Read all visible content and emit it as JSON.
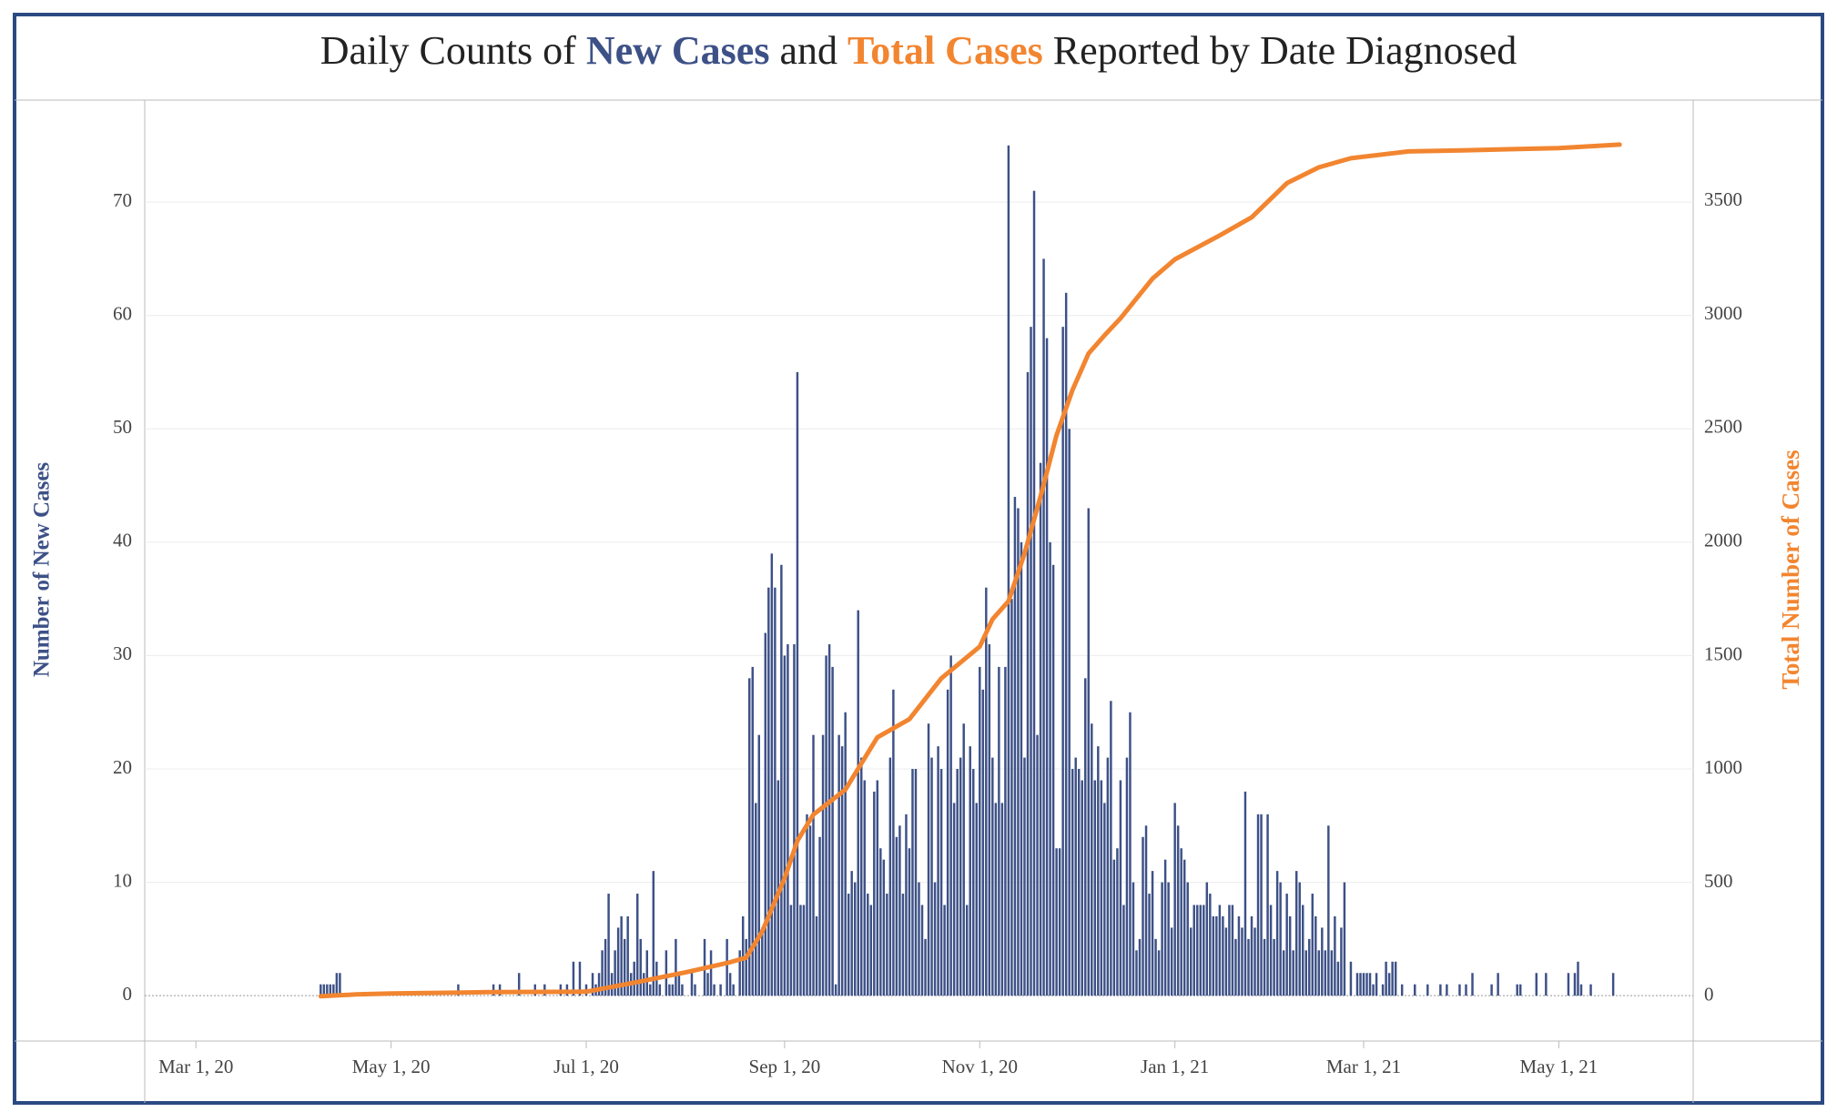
{
  "chart_data": {
    "type": "bar",
    "title_prefix": "Daily Counts of",
    "title_joiner": "and",
    "title_suffix": "Reported by Date Diagnosed",
    "y_label": "Number of New Cases",
    "y2_label": "Total Number of Cases",
    "xlim": [
      "2020-02-14",
      "2021-06-12"
    ],
    "xticks": [
      {
        "value": "2020-03-01",
        "label": "Mar 1, 20"
      },
      {
        "value": "2020-05-01",
        "label": "May 1, 20"
      },
      {
        "value": "2020-07-01",
        "label": "Jul 1, 20"
      },
      {
        "value": "2020-09-01",
        "label": "Sep 1, 20"
      },
      {
        "value": "2020-11-01",
        "label": "Nov 1, 20"
      },
      {
        "value": "2021-01-01",
        "label": "Jan 1, 21"
      },
      {
        "value": "2021-03-01",
        "label": "Mar 1, 21"
      },
      {
        "value": "2021-05-01",
        "label": "May 1, 21"
      }
    ],
    "ylim": [
      -4,
      79
    ],
    "yticks": [
      0,
      10,
      20,
      30,
      40,
      50,
      60,
      70
    ],
    "y2lim": [
      -197,
      3946
    ],
    "y2ticks": [
      0,
      500,
      1000,
      1500,
      2000,
      2500,
      3000,
      3500
    ],
    "grid": true,
    "series": [
      {
        "name": "New Cases",
        "color": "#3d5187",
        "x": [
          "2020-04-09",
          "2020-04-10",
          "2020-04-11",
          "2020-04-12",
          "2020-04-13",
          "2020-04-14",
          "2020-04-15",
          "2020-05-22",
          "2020-06-02",
          "2020-06-04",
          "2020-06-10",
          "2020-06-15",
          "2020-06-18",
          "2020-06-23",
          "2020-06-25",
          "2020-06-27",
          "2020-06-29",
          "2020-07-01",
          "2020-07-03",
          "2020-07-04",
          "2020-07-05",
          "2020-07-06",
          "2020-07-07",
          "2020-07-08",
          "2020-07-09",
          "2020-07-10",
          "2020-07-11",
          "2020-07-12",
          "2020-07-13",
          "2020-07-14",
          "2020-07-15",
          "2020-07-16",
          "2020-07-17",
          "2020-07-18",
          "2020-07-19",
          "2020-07-20",
          "2020-07-21",
          "2020-07-22",
          "2020-07-23",
          "2020-07-24",
          "2020-07-25",
          "2020-07-26",
          "2020-07-27",
          "2020-07-28",
          "2020-07-29",
          "2020-07-30",
          "2020-07-31",
          "2020-08-01",
          "2020-08-02",
          "2020-08-03",
          "2020-08-04",
          "2020-08-05",
          "2020-08-06",
          "2020-08-07",
          "2020-08-08",
          "2020-08-09",
          "2020-08-10",
          "2020-08-11",
          "2020-08-12",
          "2020-08-13",
          "2020-08-14",
          "2020-08-15",
          "2020-08-16",
          "2020-08-17",
          "2020-08-18",
          "2020-08-19",
          "2020-08-20",
          "2020-08-21",
          "2020-08-22",
          "2020-08-23",
          "2020-08-24",
          "2020-08-25",
          "2020-08-26",
          "2020-08-27",
          "2020-08-28",
          "2020-08-29",
          "2020-08-30",
          "2020-08-31",
          "2020-09-01",
          "2020-09-02",
          "2020-09-03",
          "2020-09-04",
          "2020-09-05",
          "2020-09-06",
          "2020-09-07",
          "2020-09-08",
          "2020-09-09",
          "2020-09-10",
          "2020-09-11",
          "2020-09-12",
          "2020-09-13",
          "2020-09-14",
          "2020-09-15",
          "2020-09-16",
          "2020-09-17",
          "2020-09-18",
          "2020-09-19",
          "2020-09-20",
          "2020-09-21",
          "2020-09-22",
          "2020-09-23",
          "2020-09-24",
          "2020-09-25",
          "2020-09-26",
          "2020-09-27",
          "2020-09-28",
          "2020-09-29",
          "2020-09-30",
          "2020-10-01",
          "2020-10-02",
          "2020-10-03",
          "2020-10-04",
          "2020-10-05",
          "2020-10-06",
          "2020-10-07",
          "2020-10-08",
          "2020-10-09",
          "2020-10-10",
          "2020-10-11",
          "2020-10-12",
          "2020-10-13",
          "2020-10-14",
          "2020-10-15",
          "2020-10-16",
          "2020-10-17",
          "2020-10-18",
          "2020-10-19",
          "2020-10-20",
          "2020-10-21",
          "2020-10-22",
          "2020-10-23",
          "2020-10-24",
          "2020-10-25",
          "2020-10-26",
          "2020-10-27",
          "2020-10-28",
          "2020-10-29",
          "2020-10-30",
          "2020-10-31",
          "2020-11-01",
          "2020-11-02",
          "2020-11-03",
          "2020-11-04",
          "2020-11-05",
          "2020-11-06",
          "2020-11-07",
          "2020-11-08",
          "2020-11-09",
          "2020-11-10",
          "2020-11-11",
          "2020-11-12",
          "2020-11-13",
          "2020-11-14",
          "2020-11-15",
          "2020-11-16",
          "2020-11-17",
          "2020-11-18",
          "2020-11-19",
          "2020-11-20",
          "2020-11-21",
          "2020-11-22",
          "2020-11-23",
          "2020-11-24",
          "2020-11-25",
          "2020-11-26",
          "2020-11-27",
          "2020-11-28",
          "2020-11-29",
          "2020-11-30",
          "2020-12-01",
          "2020-12-02",
          "2020-12-03",
          "2020-12-04",
          "2020-12-05",
          "2020-12-06",
          "2020-12-07",
          "2020-12-08",
          "2020-12-09",
          "2020-12-10",
          "2020-12-11",
          "2020-12-12",
          "2020-12-13",
          "2020-12-14",
          "2020-12-15",
          "2020-12-16",
          "2020-12-17",
          "2020-12-18",
          "2020-12-19",
          "2020-12-20",
          "2020-12-21",
          "2020-12-22",
          "2020-12-23",
          "2020-12-24",
          "2020-12-25",
          "2020-12-26",
          "2020-12-27",
          "2020-12-28",
          "2020-12-29",
          "2020-12-30",
          "2020-12-31",
          "2021-01-01",
          "2021-01-02",
          "2021-01-03",
          "2021-01-04",
          "2021-01-05",
          "2021-01-06",
          "2021-01-07",
          "2021-01-08",
          "2021-01-09",
          "2021-01-10",
          "2021-01-11",
          "2021-01-12",
          "2021-01-13",
          "2021-01-14",
          "2021-01-15",
          "2021-01-16",
          "2021-01-17",
          "2021-01-18",
          "2021-01-19",
          "2021-01-20",
          "2021-01-21",
          "2021-01-22",
          "2021-01-23",
          "2021-01-24",
          "2021-01-25",
          "2021-01-26",
          "2021-01-27",
          "2021-01-28",
          "2021-01-29",
          "2021-01-30",
          "2021-01-31",
          "2021-02-01",
          "2021-02-02",
          "2021-02-03",
          "2021-02-04",
          "2021-02-05",
          "2021-02-06",
          "2021-02-07",
          "2021-02-08",
          "2021-02-09",
          "2021-02-10",
          "2021-02-11",
          "2021-02-12",
          "2021-02-13",
          "2021-02-14",
          "2021-02-15",
          "2021-02-16",
          "2021-02-17",
          "2021-02-18",
          "2021-02-19",
          "2021-02-20",
          "2021-02-21",
          "2021-02-22",
          "2021-02-23",
          "2021-02-24",
          "2021-02-25",
          "2021-02-27",
          "2021-02-28",
          "2021-03-01",
          "2021-03-02",
          "2021-03-03",
          "2021-03-04",
          "2021-03-05",
          "2021-03-07",
          "2021-03-08",
          "2021-03-09",
          "2021-03-10",
          "2021-03-11",
          "2021-03-13",
          "2021-03-17",
          "2021-03-21",
          "2021-03-25",
          "2021-03-27",
          "2021-03-31",
          "2021-04-02",
          "2021-04-04",
          "2021-04-10",
          "2021-04-12",
          "2021-04-18",
          "2021-04-19",
          "2021-04-24",
          "2021-04-27",
          "2021-05-04",
          "2021-05-06",
          "2021-05-07",
          "2021-05-08",
          "2021-05-11",
          "2021-05-18"
        ],
        "values": [
          1,
          1,
          1,
          1,
          1,
          2,
          2,
          1,
          1,
          1,
          2,
          1,
          1,
          1,
          1,
          3,
          3,
          1,
          2,
          1,
          2,
          4,
          5,
          9,
          2,
          4,
          6,
          7,
          5,
          7,
          2,
          3,
          9,
          5,
          2,
          4,
          1,
          11,
          3,
          1,
          0,
          4,
          1,
          1,
          5,
          2,
          1,
          0,
          0,
          2,
          1,
          0,
          0,
          5,
          2,
          4,
          1,
          0,
          1,
          0,
          5,
          2,
          1,
          0,
          4,
          7,
          5,
          28,
          29,
          17,
          23,
          6,
          32,
          36,
          39,
          36,
          19,
          38,
          30,
          31,
          8,
          31,
          55,
          8,
          8,
          16,
          15,
          23,
          7,
          14,
          23,
          30,
          31,
          29,
          1,
          23,
          22,
          25,
          9,
          11,
          10,
          34,
          21,
          19,
          9,
          8,
          18,
          19,
          13,
          12,
          9,
          21,
          27,
          14,
          15,
          9,
          16,
          13,
          20,
          20,
          10,
          8,
          5,
          24,
          21,
          10,
          22,
          20,
          8,
          27,
          30,
          17,
          20,
          21,
          24,
          8,
          22,
          20,
          17,
          29,
          27,
          36,
          31,
          21,
          17,
          29,
          17,
          29,
          75,
          35,
          44,
          43,
          40,
          21,
          55,
          59,
          71,
          23,
          47,
          65,
          58,
          40,
          38,
          13,
          13,
          59,
          62,
          50,
          20,
          21,
          20,
          19,
          28,
          43,
          24,
          19,
          22,
          19,
          17,
          21,
          26,
          12,
          13,
          19,
          8,
          21,
          25,
          10,
          4,
          5,
          14,
          15,
          9,
          11,
          5,
          4,
          10,
          12,
          10,
          6,
          17,
          15,
          13,
          12,
          10,
          6,
          8,
          8,
          8,
          8,
          10,
          9,
          7,
          7,
          8,
          7,
          6,
          8,
          8,
          5,
          7,
          6,
          18,
          5,
          7,
          6,
          16,
          16,
          5,
          16,
          8,
          5,
          11,
          10,
          4,
          9,
          7,
          4,
          11,
          10,
          8,
          4,
          5,
          9,
          7,
          4,
          6,
          4,
          15,
          4,
          7,
          3,
          6,
          10,
          0,
          3,
          2,
          2,
          2,
          2,
          2,
          1,
          2,
          1,
          3,
          2,
          3,
          3,
          1,
          1,
          1,
          1,
          1,
          1,
          1,
          2,
          1,
          2,
          1,
          1,
          2,
          2,
          2,
          2,
          3,
          1,
          1,
          2
        ]
      },
      {
        "name": "Total Cases",
        "color": "#f28530",
        "type": "line",
        "axis": "y2",
        "x": [
          "2020-04-09",
          "2020-04-20",
          "2020-05-01",
          "2020-06-01",
          "2020-07-01",
          "2020-07-15",
          "2020-08-01",
          "2020-08-15",
          "2020-08-20",
          "2020-08-25",
          "2020-09-01",
          "2020-09-05",
          "2020-09-10",
          "2020-09-20",
          "2020-09-30",
          "2020-10-10",
          "2020-10-20",
          "2020-11-01",
          "2020-11-05",
          "2020-11-10",
          "2020-11-15",
          "2020-11-20",
          "2020-11-25",
          "2020-11-30",
          "2020-12-05",
          "2020-12-10",
          "2020-12-15",
          "2020-12-25",
          "2021-01-01",
          "2021-01-15",
          "2021-01-25",
          "2021-02-05",
          "2021-02-15",
          "2021-02-25",
          "2021-03-15",
          "2021-04-01",
          "2021-05-01",
          "2021-05-20"
        ],
        "values": [
          0,
          8,
          12,
          18,
          20,
          57,
          105,
          150,
          170,
          285,
          520,
          685,
          800,
          910,
          1140,
          1220,
          1400,
          1540,
          1660,
          1740,
          1950,
          2200,
          2470,
          2670,
          2830,
          2910,
          2985,
          3160,
          3245,
          3350,
          3430,
          3580,
          3650,
          3690,
          3720,
          3725,
          3735,
          3750
        ]
      }
    ]
  }
}
